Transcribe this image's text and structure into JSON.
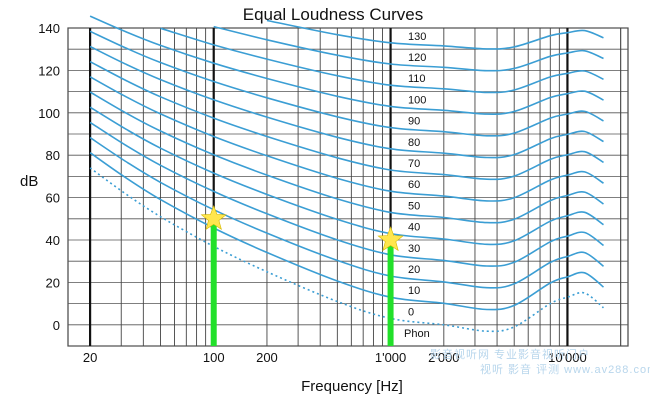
{
  "chart_data": {
    "type": "line",
    "title": "Equal Loudness Curves",
    "xlabel": "Frequency [Hz]",
    "ylabel": "dB",
    "x_scale": "log",
    "xlim": [
      15,
      22000
    ],
    "ylim": [
      -10,
      140
    ],
    "x_ticks": [
      {
        "value": 20,
        "label": "20"
      },
      {
        "value": 100,
        "label": "100"
      },
      {
        "value": 200,
        "label": "200"
      },
      {
        "value": 1000,
        "label": "1'000"
      },
      {
        "value": 2000,
        "label": "2'000"
      },
      {
        "value": 10000,
        "label": "10'000"
      }
    ],
    "y_ticks": [
      0,
      20,
      40,
      60,
      80,
      100,
      120,
      140
    ],
    "grid": true,
    "phon_unit_label": "Phon",
    "curve_color": "#3b9ed4",
    "curve_frequencies": [
      20,
      31.5,
      50,
      100,
      200,
      500,
      1000,
      2000,
      3500,
      5000,
      8000,
      10000,
      12500,
      16000
    ],
    "base_curve": [
      74,
      62,
      51,
      37,
      25,
      11,
      3,
      0,
      -3,
      -1,
      10,
      13,
      15,
      8
    ],
    "series": [
      {
        "name": "0",
        "phon": 0,
        "dotted": true
      },
      {
        "name": "10",
        "phon": 10
      },
      {
        "name": "20",
        "phon": 20
      },
      {
        "name": "30",
        "phon": 30
      },
      {
        "name": "40",
        "phon": 40
      },
      {
        "name": "50",
        "phon": 50
      },
      {
        "name": "60",
        "phon": 60
      },
      {
        "name": "70",
        "phon": 70
      },
      {
        "name": "80",
        "phon": 80
      },
      {
        "name": "90",
        "phon": 90
      },
      {
        "name": "100",
        "phon": 100
      },
      {
        "name": "110",
        "phon": 110
      },
      {
        "name": "120",
        "phon": 120
      },
      {
        "name": "130",
        "phon": 130
      }
    ],
    "markers": [
      {
        "x": 100,
        "y": 50,
        "color": "#22e02a",
        "star_color": "#ffe64d"
      },
      {
        "x": 1000,
        "y": 40,
        "color": "#22e02a",
        "star_color": "#ffe64d"
      }
    ]
  },
  "watermark": {
    "line1": "影音视听网 专业影音视听门户",
    "line2": "视听 影音 评测 www.av288.com"
  }
}
